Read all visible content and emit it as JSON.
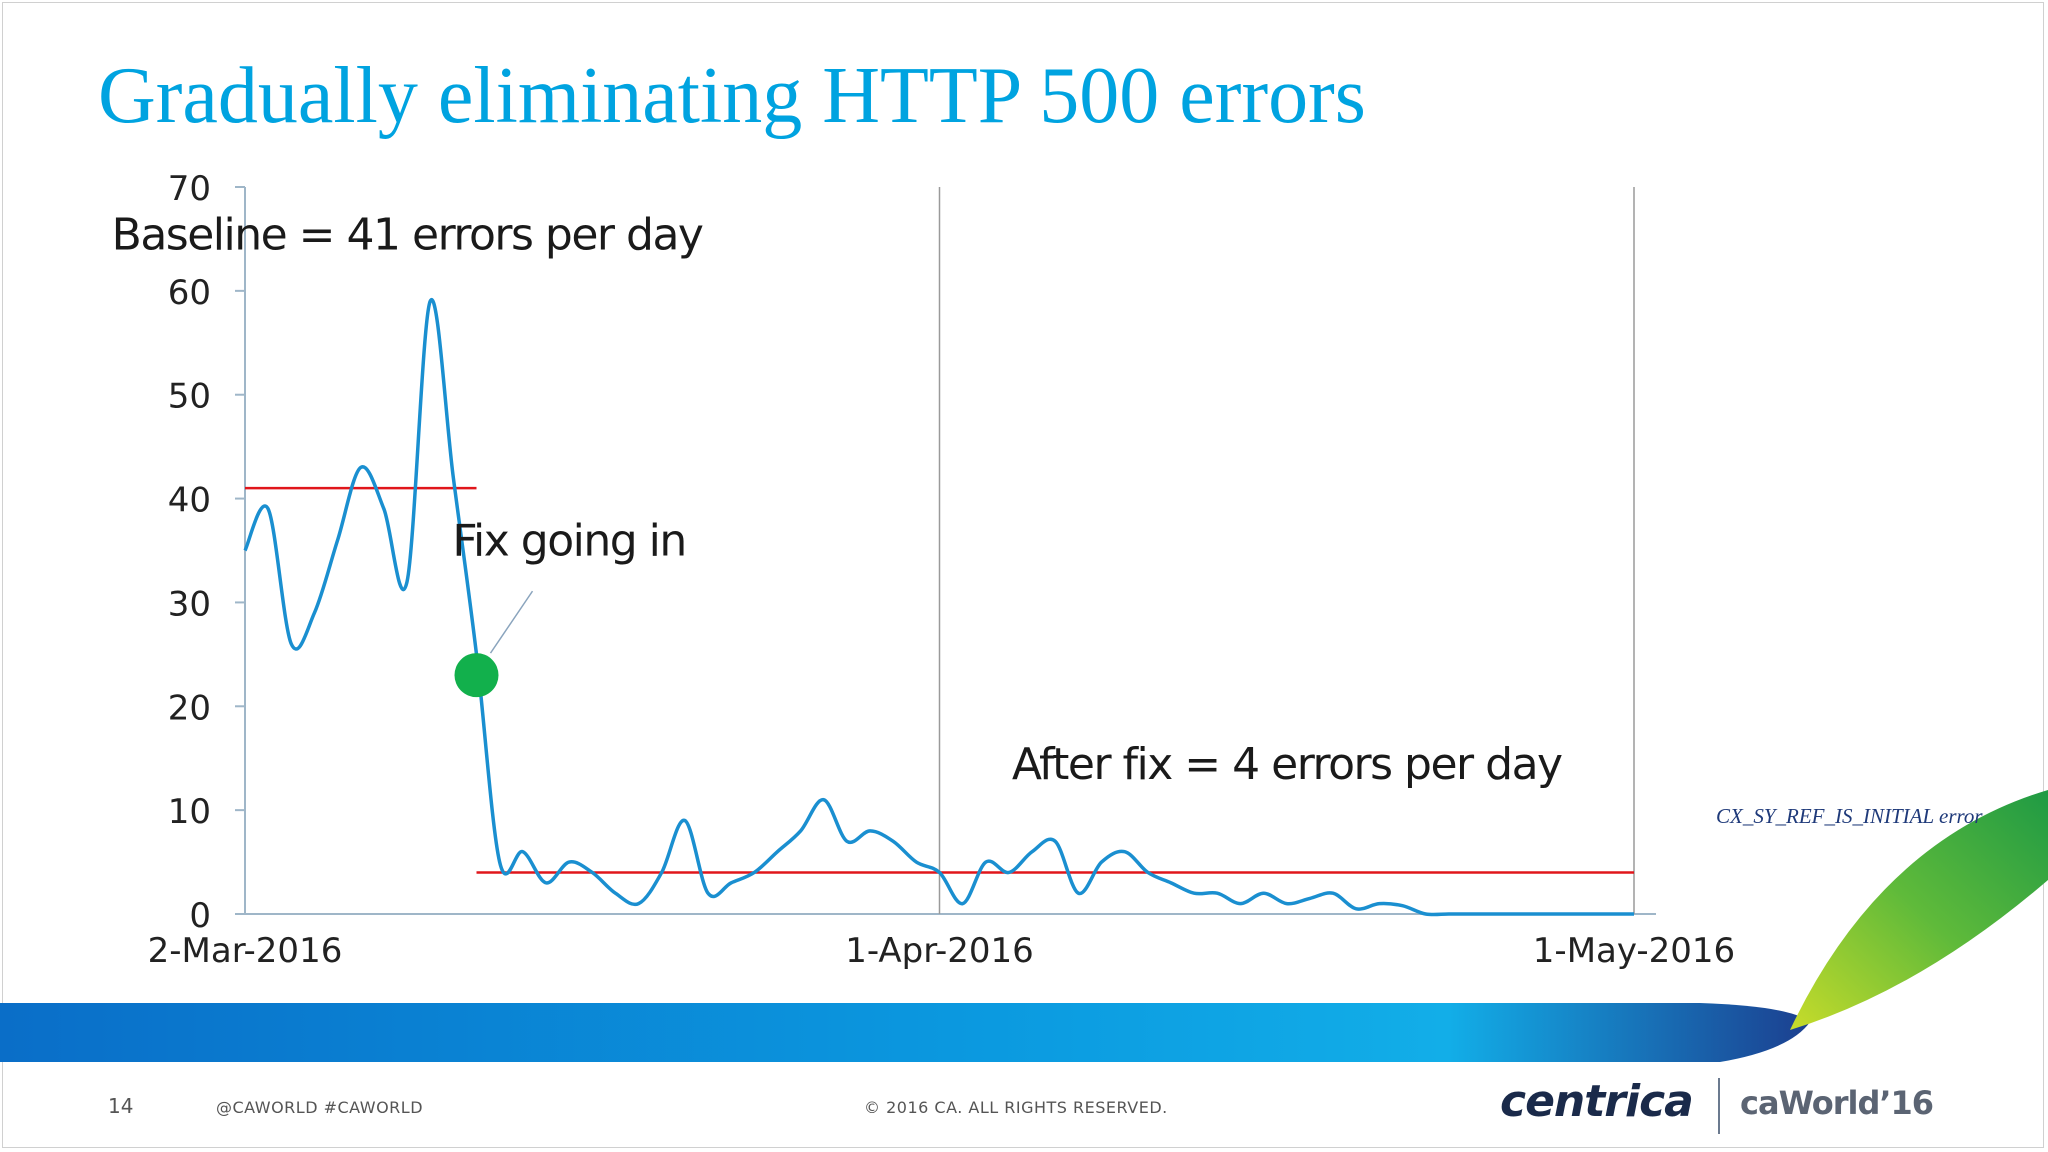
{
  "slide": {
    "title": "Gradually eliminating HTTP 500 errors",
    "page_number": "14",
    "social": "@CAWORLD    #CAWORLD",
    "copyright": "© 2016 CA. ALL RIGHTS RESERVED.",
    "stray_text": "CX_SY_REF_IS_INITIAL error",
    "logos": {
      "centrica": "centrica",
      "caworld": "caWorld’16"
    },
    "colors": {
      "title": "#00a3e0",
      "line": "#1a8fd0",
      "baseline": "#e0161b",
      "marker": "#12b04c",
      "band_start": "#0a6ec8",
      "band_end": "#12aee8"
    }
  },
  "chart_data": {
    "type": "line",
    "title": "",
    "xlabel": "",
    "ylabel": "",
    "ylim": [
      0,
      70
    ],
    "yticks": [
      0,
      10,
      20,
      30,
      40,
      50,
      60,
      70
    ],
    "xlim": [
      "2016-03-02",
      "2016-05-01"
    ],
    "xticks": [
      {
        "date": "2016-03-02",
        "label": "2-Mar-2016"
      },
      {
        "date": "2016-04-01",
        "label": "1-Apr-2016"
      },
      {
        "date": "2016-05-01",
        "label": "1-May-2016"
      }
    ],
    "vertical_gridlines_at": [
      "2016-04-01",
      "2016-05-01"
    ],
    "series": [
      {
        "x": [
          "2016-03-02",
          "2016-03-03",
          "2016-03-04",
          "2016-03-05",
          "2016-03-06",
          "2016-03-07",
          "2016-03-08",
          "2016-03-09",
          "2016-03-10",
          "2016-03-11",
          "2016-03-12",
          "2016-03-13",
          "2016-03-14",
          "2016-03-15",
          "2016-03-16",
          "2016-03-17",
          "2016-03-18",
          "2016-03-19",
          "2016-03-20",
          "2016-03-21",
          "2016-03-22",
          "2016-03-23",
          "2016-03-24",
          "2016-03-25",
          "2016-03-26",
          "2016-03-27",
          "2016-03-28",
          "2016-03-29",
          "2016-03-30",
          "2016-03-31",
          "2016-04-01",
          "2016-04-02",
          "2016-04-03",
          "2016-04-04",
          "2016-04-05",
          "2016-04-06",
          "2016-04-07",
          "2016-04-08",
          "2016-04-09",
          "2016-04-10",
          "2016-04-11",
          "2016-04-12",
          "2016-04-13",
          "2016-04-14",
          "2016-04-15",
          "2016-04-16",
          "2016-04-17",
          "2016-04-18",
          "2016-04-19",
          "2016-04-20",
          "2016-04-21",
          "2016-04-22",
          "2016-04-23",
          "2016-04-24",
          "2016-04-25",
          "2016-04-26",
          "2016-04-27",
          "2016-04-28",
          "2016-04-29",
          "2016-04-30",
          "2016-05-01"
        ],
        "values": [
          35,
          39,
          26,
          29,
          36,
          43,
          39,
          32,
          59,
          42,
          25,
          5,
          6,
          3,
          5,
          4,
          2,
          1,
          4,
          9,
          2,
          3,
          4,
          6,
          8,
          11,
          7,
          8,
          7,
          5,
          4,
          1,
          5,
          4,
          6,
          7,
          2,
          5,
          6,
          4,
          3,
          2,
          2,
          1,
          2,
          1,
          1.5,
          2,
          0.5,
          1,
          0.8,
          0,
          0,
          0,
          0,
          0,
          0,
          0,
          0,
          0,
          0
        ]
      }
    ],
    "reference_lines": [
      {
        "value": 41,
        "from": "2016-03-02",
        "to": "2016-03-12"
      },
      {
        "value": 4,
        "from": "2016-03-12",
        "to": "2016-05-01"
      }
    ],
    "marker": {
      "date": "2016-03-12",
      "value": 23
    },
    "annotations": [
      {
        "text": "Baseline = 41 errors per day"
      },
      {
        "text": "Fix going in"
      },
      {
        "text": "After fix = 4 errors per day"
      }
    ]
  }
}
